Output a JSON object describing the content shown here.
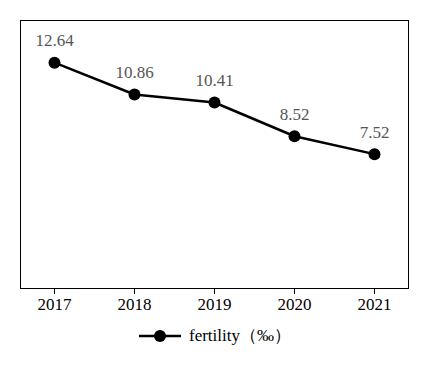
{
  "chart_data": {
    "type": "line",
    "categories": [
      "2017",
      "2018",
      "2019",
      "2020",
      "2021"
    ],
    "series": [
      {
        "name": "fertility（‰）",
        "color": "#000000",
        "marker": "circle",
        "values": [
          12.64,
          10.86,
          10.41,
          8.52,
          7.52
        ]
      }
    ],
    "ylim": [
      0,
      15
    ],
    "data_labels": true,
    "tick_labels": "x",
    "legend": "bottom"
  }
}
